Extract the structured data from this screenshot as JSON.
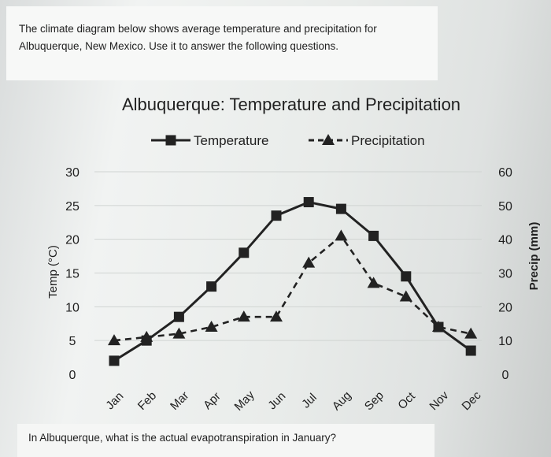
{
  "intro": "The climate diagram below shows average temperature and precipitation for Albuquerque, New Mexico.  Use it to answer the following questions.",
  "question": "In Albuquerque, what is the actual evapotranspiration in January?",
  "chart_data": {
    "type": "line",
    "title": "Albuquerque: Temperature and Precipitation",
    "categories": [
      "Jan",
      "Feb",
      "Mar",
      "Apr",
      "May",
      "Jun",
      "Jul",
      "Aug",
      "Sep",
      "Oct",
      "Nov",
      "Dec"
    ],
    "series": [
      {
        "name": "Temperature",
        "axis": "left",
        "marker": "square",
        "dash": false,
        "values": [
          2,
          5,
          8.5,
          13,
          18,
          23.5,
          25.5,
          24.5,
          20.5,
          14.5,
          7,
          3.5
        ]
      },
      {
        "name": "Precipitation",
        "axis": "right",
        "marker": "triangle",
        "dash": true,
        "values": [
          10,
          11,
          12,
          14,
          17,
          17,
          33,
          41,
          27,
          23,
          14,
          12
        ]
      }
    ],
    "ylabel": "Temp (°C)",
    "y2label": "Precip (mm)",
    "ylim": [
      0,
      30
    ],
    "y2lim": [
      0,
      60
    ],
    "yticks": [
      "0",
      "5",
      "10",
      "15",
      "20",
      "25",
      "30"
    ],
    "y2ticks": [
      "0",
      "10",
      "20",
      "30",
      "40",
      "50",
      "60"
    ],
    "legend_position": "top-center",
    "grid": true,
    "colors": {
      "line": "#222222",
      "grid": "#d0d4d2"
    }
  }
}
